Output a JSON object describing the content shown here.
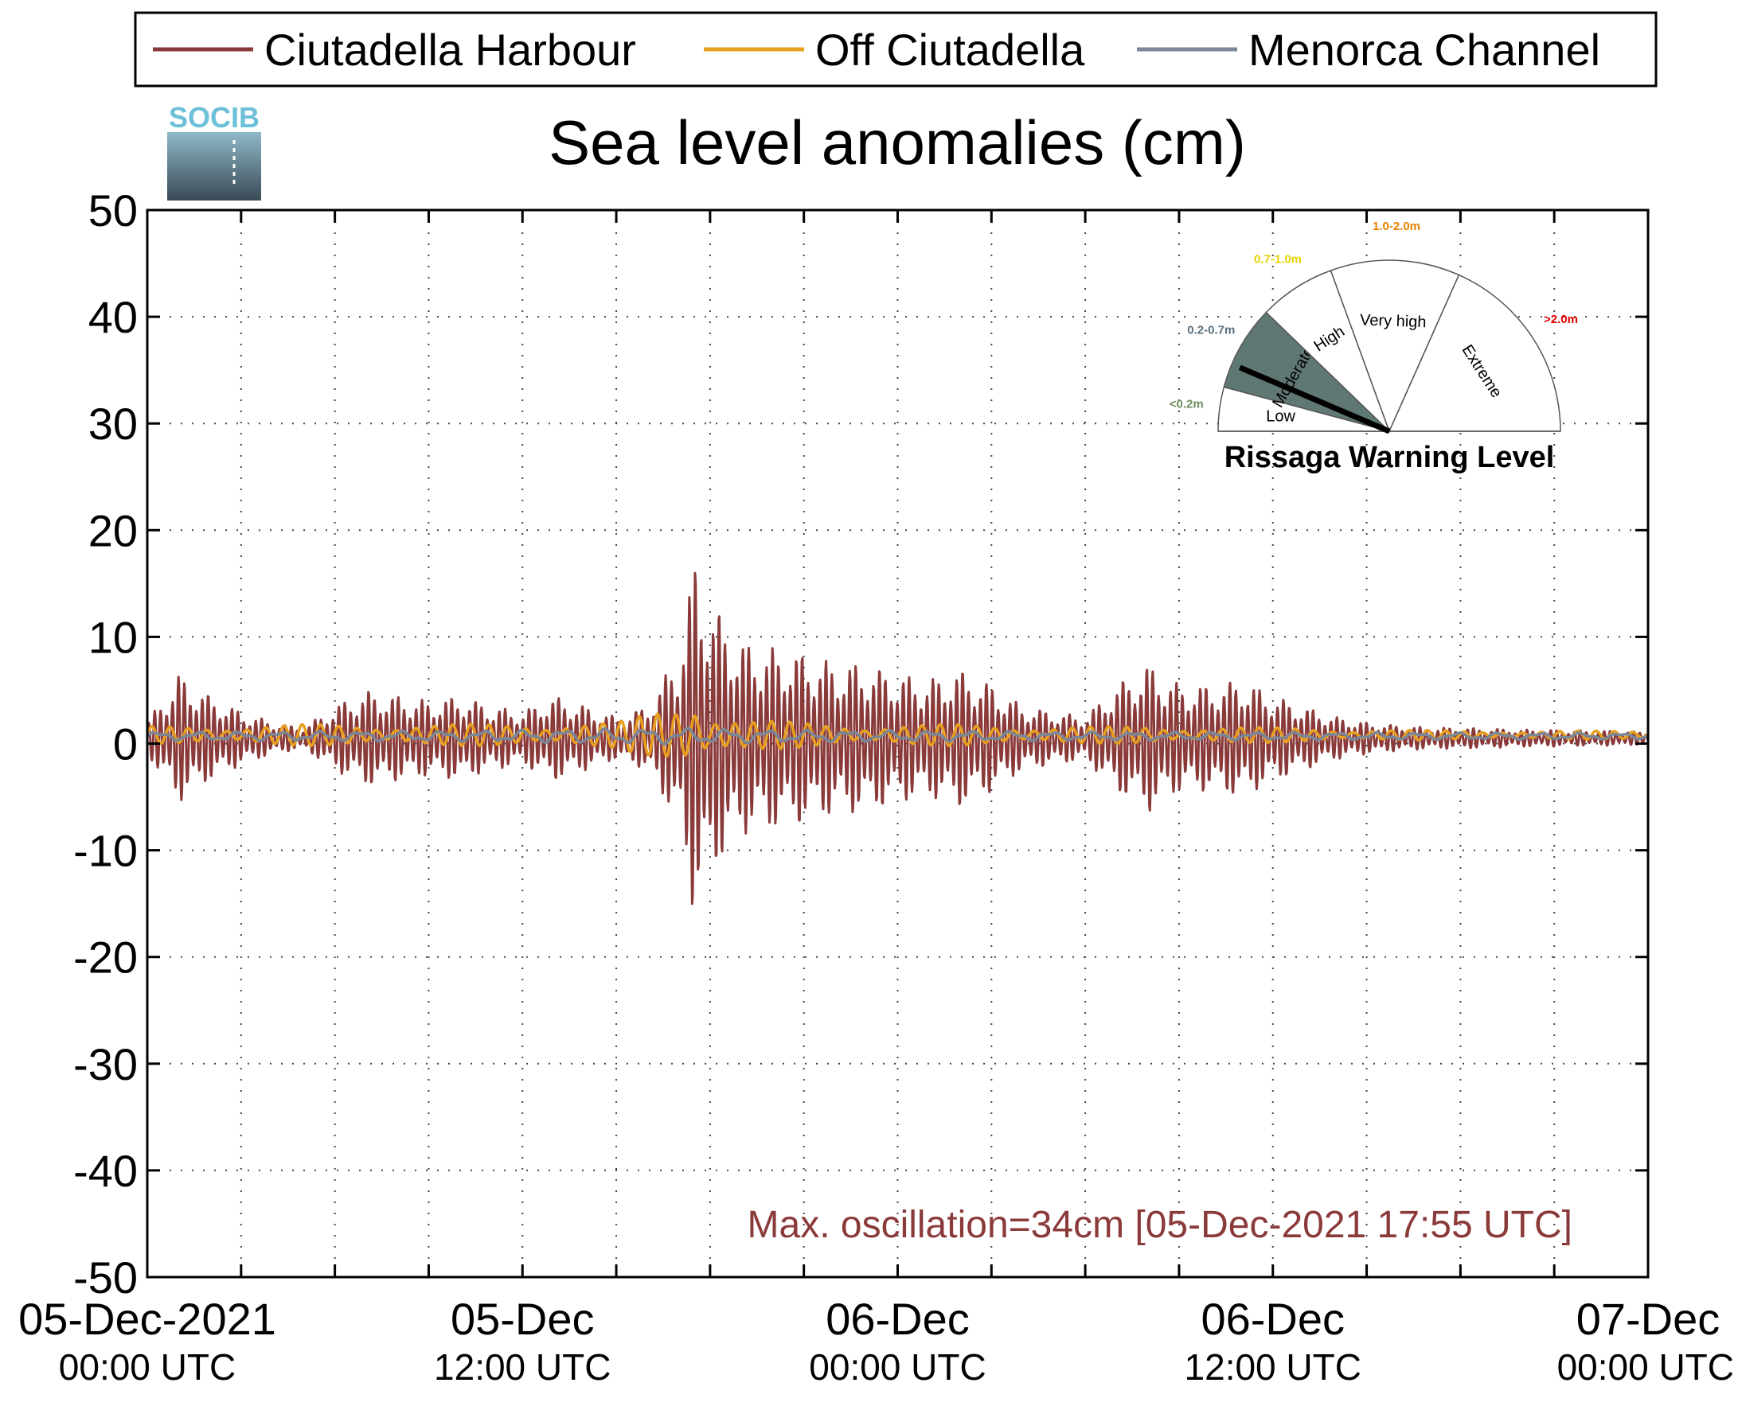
{
  "chart_data": {
    "type": "line",
    "title": "Sea level anomalies (cm)",
    "ylim": [
      -50,
      50
    ],
    "yticks": [
      50,
      40,
      30,
      20,
      10,
      0,
      -10,
      -20,
      -30,
      -40,
      -50
    ],
    "ytick_labels": [
      "50",
      "40",
      "30",
      "20",
      "10",
      "0",
      "-10",
      "-20",
      "-30",
      "-40",
      "-50"
    ],
    "xlim_hours": [
      0,
      48
    ],
    "xticks": [
      {
        "hour": 0,
        "line1": "05-Dec-2021",
        "line2": "00:00 UTC"
      },
      {
        "hour": 12,
        "line1": "05-Dec",
        "line2": "12:00 UTC"
      },
      {
        "hour": 24,
        "line1": "06-Dec",
        "line2": "00:00 UTC"
      },
      {
        "hour": 36,
        "line1": "06-Dec",
        "line2": "12:00 UTC"
      },
      {
        "hour": 48,
        "line1": "07-Dec",
        "line2": "00:00 UTC"
      }
    ],
    "grid": true,
    "legend_position": "top",
    "series": [
      {
        "name": "Ciutadella Harbour",
        "color": "#8b3a3a",
        "envelope_hours": [
          0,
          1,
          2,
          3,
          4,
          5,
          6,
          7,
          8,
          9,
          10,
          11,
          12,
          13,
          14,
          15,
          16,
          17,
          17.5,
          18,
          19,
          20,
          21,
          22,
          23,
          24,
          25,
          26,
          27,
          28,
          29,
          30,
          31,
          32,
          33,
          34,
          35,
          36,
          37,
          38,
          39,
          40,
          41,
          42,
          43,
          44,
          45,
          46,
          47,
          48
        ],
        "envelope_amp": [
          1.5,
          6,
          4,
          2.5,
          1.5,
          1,
          3,
          4.5,
          4,
          3.5,
          4,
          3,
          2.5,
          4,
          3,
          2,
          3,
          8,
          17,
          13,
          9,
          8.5,
          8,
          7,
          7,
          6,
          5.5,
          6.5,
          5,
          3,
          2.5,
          2,
          5,
          7,
          5,
          5,
          5.5,
          4,
          3,
          2,
          1.5,
          1.2,
          1,
          1,
          0.9,
          0.8,
          0.8,
          0.7,
          0.7,
          0.6
        ],
        "baseline_cm": 0.5
      },
      {
        "name": "Off Ciutadella",
        "color": "#e8a020",
        "envelope_hours": [
          0,
          5,
          10,
          15,
          16,
          17,
          17.5,
          18,
          19,
          22,
          26,
          30,
          34,
          38,
          42,
          48
        ],
        "envelope_amp": [
          0.8,
          1,
          1,
          1.2,
          2,
          3,
          4,
          2.5,
          1.5,
          1,
          1,
          0.8,
          0.8,
          0.6,
          0.4,
          0.4
        ],
        "baseline_cm": 0.8
      },
      {
        "name": "Menorca Channel",
        "color": "#7a8799",
        "envelope_hours": [
          0,
          10,
          17,
          20,
          30,
          48
        ],
        "envelope_amp": [
          0.4,
          0.5,
          0.8,
          0.6,
          0.4,
          0.3
        ],
        "baseline_cm": 0.7
      }
    ],
    "annotation": "Max. oscillation=34cm [05-Dec-2021 17:55 UTC]",
    "annotation_color": "#8b3a3a"
  },
  "logo": {
    "text": "SOCIB"
  },
  "gauge": {
    "title": "Rissaga Warning Level",
    "sectors": [
      {
        "label": "Low",
        "range": "<0.2m",
        "range_color": "#6b8e5a",
        "fill": "#ffffff"
      },
      {
        "label": "Moderate",
        "range": "0.2-0.7m",
        "range_color": "#5a7080",
        "fill": "#5f7874"
      },
      {
        "label": "High",
        "range": "0.7-1.0m",
        "range_color": "#e8d000",
        "fill": "#ffffff"
      },
      {
        "label": "Very high",
        "range": "1.0-2.0m",
        "range_color": "#e88000",
        "fill": "#ffffff"
      },
      {
        "label": "Extreme",
        "range": ">2.0m",
        "range_color": "#e00000",
        "fill": "#ffffff"
      }
    ],
    "active_level": "Moderate",
    "needle_value_m": 0.34
  }
}
